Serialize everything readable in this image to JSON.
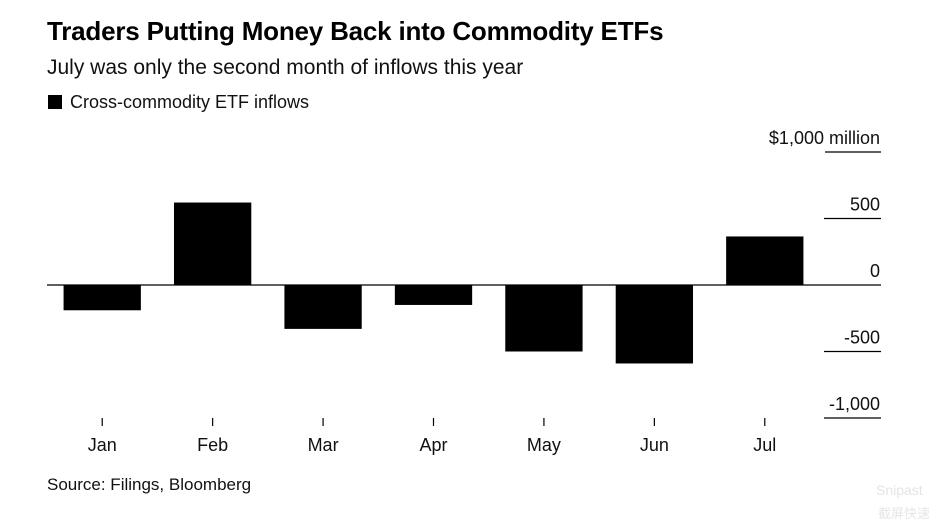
{
  "header": {
    "title": "Traders Putting Money Back into Commodity ETFs",
    "subtitle": "July was only the second month of inflows this year"
  },
  "legend": {
    "label": "Cross-commodity ETF inflows",
    "color": "#000000"
  },
  "source": "Source: Filings, Bloomberg",
  "watermark": {
    "line1": "Snipast",
    "line2": "截屏快速"
  },
  "chart_data": {
    "type": "bar",
    "title": "Traders Putting Money Back into Commodity ETFs",
    "subtitle": "July was only the second month of inflows this year",
    "categories": [
      "Jan",
      "Feb",
      "Mar",
      "Apr",
      "May",
      "Jun",
      "Jul"
    ],
    "series": [
      {
        "name": "Cross-commodity ETF inflows",
        "values": [
          -190,
          620,
          -330,
          -150,
          -500,
          -590,
          365
        ]
      }
    ],
    "ylim": [
      -1000,
      1000
    ],
    "yticks": [
      1000,
      500,
      0,
      -500,
      -1000
    ],
    "ytick_labels": [
      "$1,000 million",
      "500",
      "0",
      "-500",
      "-1,000"
    ],
    "xlabel": "",
    "ylabel": "$ million",
    "bar_color": "#000000",
    "grid": false,
    "legend_position": "top-left"
  }
}
